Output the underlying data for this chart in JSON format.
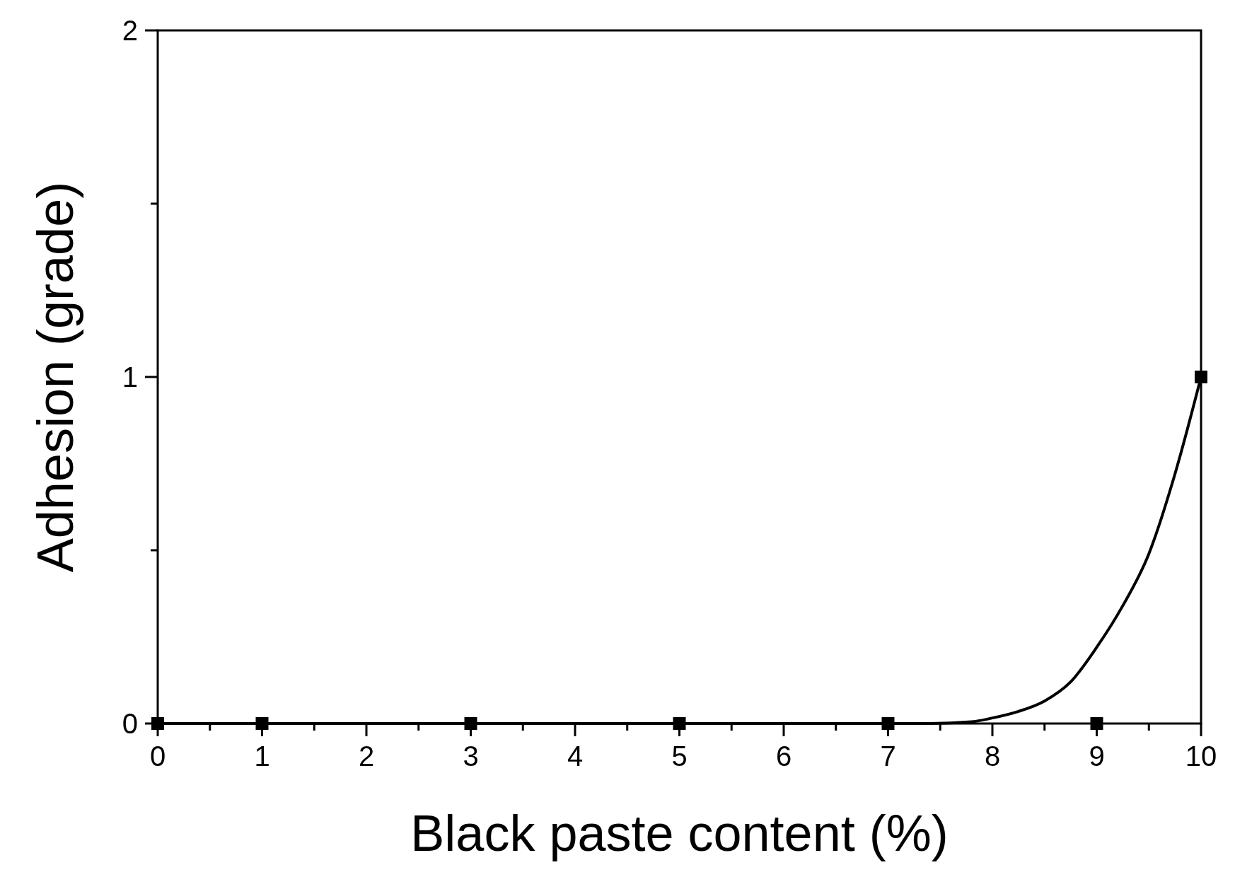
{
  "chart_data": {
    "type": "scatter",
    "xlabel": "Black paste content (%)",
    "ylabel": "Adhesion (grade)",
    "xlim": [
      0,
      10
    ],
    "ylim": [
      0,
      2
    ],
    "xticks": [
      0,
      {
        "value": 0.5,
        "label": null
      },
      1,
      {
        "value": 1.5,
        "label": null
      },
      2,
      {
        "value": 2.5,
        "label": null
      },
      3,
      {
        "value": 3.5,
        "label": null
      },
      4,
      {
        "value": 4.5,
        "label": null
      },
      5,
      {
        "value": 5.5,
        "label": null
      },
      6,
      {
        "value": 6.5,
        "label": null
      },
      7,
      {
        "value": 7.5,
        "label": null
      },
      8,
      {
        "value": 8.5,
        "label": null
      },
      9,
      {
        "value": 9.5,
        "label": null
      },
      10
    ],
    "yticks": [
      0,
      {
        "value": 0.5,
        "label": null
      },
      1,
      {
        "value": 1.5,
        "label": null
      },
      2
    ],
    "grid": false,
    "series": [
      {
        "type": "line",
        "color": "#000000",
        "marker": "none",
        "line_style": "solid",
        "x": [
          0,
          7,
          7.4,
          7.8,
          8,
          8.25,
          8.5,
          8.75,
          9,
          9.25,
          9.5,
          9.75,
          10
        ],
        "values": [
          0,
          0,
          0,
          0.005,
          0.016,
          0.035,
          0.065,
          0.12,
          0.22,
          0.34,
          0.49,
          0.72,
          1
        ]
      },
      {
        "color": "#000000",
        "marker": "square",
        "x": [
          0,
          1,
          3,
          5,
          7,
          9,
          10
        ],
        "values": [
          0,
          0,
          0,
          0,
          0,
          0,
          1
        ]
      }
    ]
  }
}
